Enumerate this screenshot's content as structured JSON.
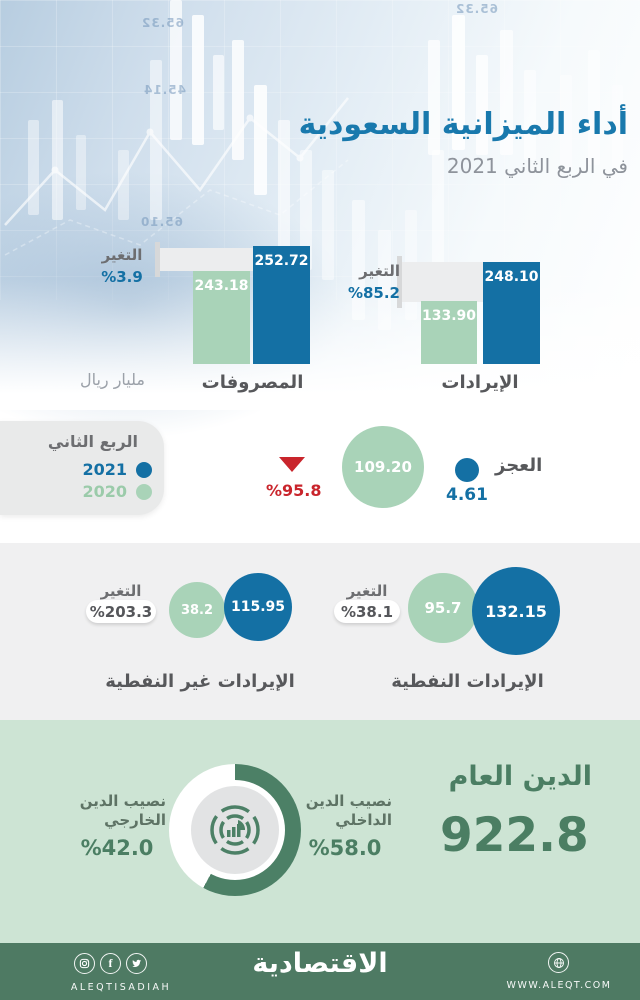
{
  "header": {
    "title": "أداء الميزانية السعودية",
    "subtitle": "في الربع الثاني 2021",
    "decor_numbers": [
      "65.32",
      "45.14",
      "65.10",
      "65.32"
    ]
  },
  "bars_section": {
    "unit_label": "مليار ريال",
    "change_label": "التغير",
    "revenues": {
      "label": "الإيرادات",
      "value_2021": "248.10",
      "value_2020": "133.90",
      "change": "%85.2"
    },
    "expenditures": {
      "label": "المصروفات",
      "value_2021": "252.72",
      "value_2020": "243.18",
      "change": "%3.9"
    }
  },
  "legend": {
    "title": "الربع الثاني",
    "year_2021": "2021",
    "year_2020": "2020",
    "color_2021": "#1470a4",
    "color_2020": "#a9d3b8"
  },
  "deficit": {
    "label": "العجز",
    "value_2021": "4.61",
    "value_2020": "109.20",
    "change": "%95.8"
  },
  "revenue_circles": {
    "change_label": "التغير",
    "oil": {
      "label": "الإيرادات النفطية",
      "value_2021": "132.15",
      "value_2020": "95.7",
      "change": "%38.1"
    },
    "non_oil": {
      "label": "الإيرادات غير النفطية",
      "value_2021": "115.95",
      "value_2020": "38.2",
      "change": "%203.3"
    }
  },
  "debt": {
    "title": "الدين العام",
    "total": "922.8",
    "internal_label_1": "نصيب الدين",
    "internal_label_2": "الداخلي",
    "internal_value": "%58.0",
    "external_label_1": "نصيب الدين",
    "external_label_2": "الخارجي",
    "external_value": "%42.0"
  },
  "footer": {
    "handle": "ALEQTISADIAH",
    "logo": "الاقتصادية",
    "website": "WWW.ALEQT.COM"
  },
  "colors": {
    "blue": "#1470a4",
    "green_light": "#a9d3b8",
    "red": "#c9252c",
    "dark_green": "#4c8066",
    "band_green": "#cde4d4",
    "footer_green": "#4e7a63"
  },
  "chart_data": [
    {
      "type": "bar",
      "title": "الإيرادات",
      "unit": "مليار ريال",
      "categories": [
        "2020",
        "2021"
      ],
      "values": [
        133.9,
        248.1
      ],
      "change_pct": 85.2
    },
    {
      "type": "bar",
      "title": "المصروفات",
      "unit": "مليار ريال",
      "categories": [
        "2020",
        "2021"
      ],
      "values": [
        243.18,
        252.72
      ],
      "change_pct": 3.9
    },
    {
      "type": "bubble",
      "title": "العجز",
      "unit": "مليار ريال",
      "categories": [
        "2020",
        "2021"
      ],
      "values": [
        109.2,
        4.61
      ],
      "change_pct": -95.8
    },
    {
      "type": "bubble",
      "title": "الإيرادات النفطية",
      "unit": "مليار ريال",
      "categories": [
        "2020",
        "2021"
      ],
      "values": [
        95.7,
        132.15
      ],
      "change_pct": 38.1
    },
    {
      "type": "bubble",
      "title": "الإيرادات غير النفطية",
      "unit": "مليار ريال",
      "categories": [
        "2020",
        "2021"
      ],
      "values": [
        38.2,
        115.95
      ],
      "change_pct": 203.3
    },
    {
      "type": "pie",
      "title": "الدين العام",
      "total": 922.8,
      "unit": "%",
      "labels": [
        "نصيب الدين الداخلي",
        "نصيب الدين الخارجي"
      ],
      "values": [
        58.0,
        42.0
      ]
    }
  ]
}
